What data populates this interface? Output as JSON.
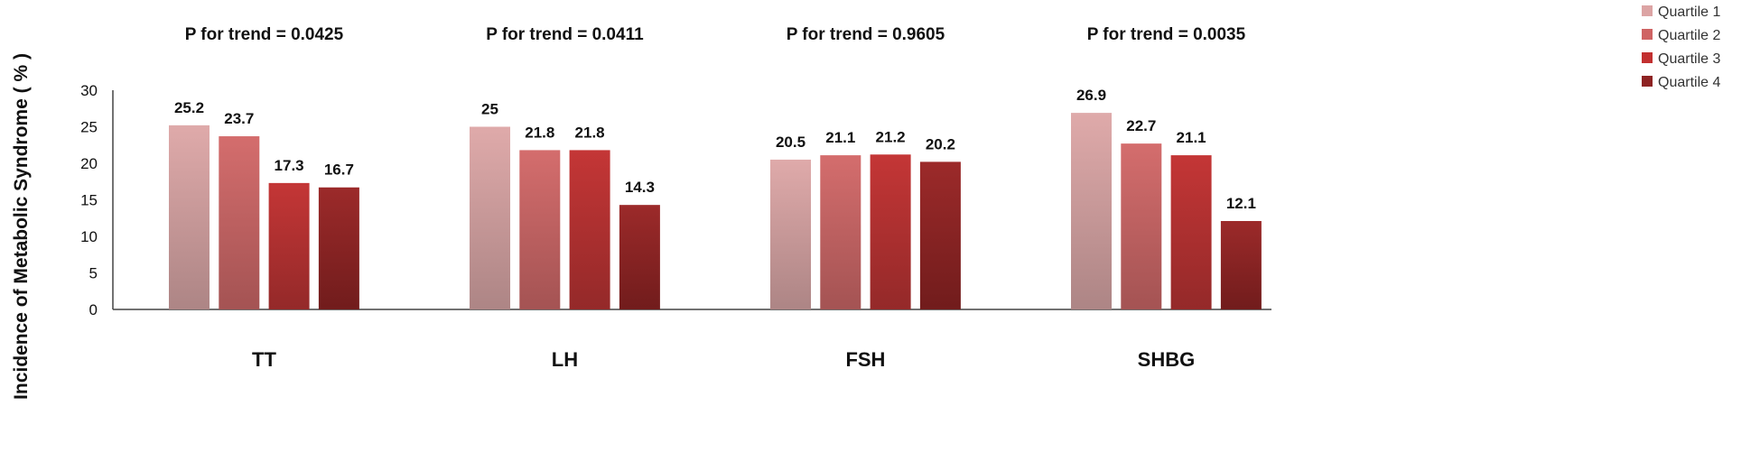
{
  "chart_data": {
    "type": "bar",
    "ylabel": "Incidence of Metabolic Syndrome ( % )",
    "xlabel": "",
    "ylim": [
      0,
      30
    ],
    "yticks": [
      0,
      5,
      10,
      15,
      20,
      25,
      30
    ],
    "grid": false,
    "legend_position": "top-right",
    "categories": [
      "TT",
      "LH",
      "FSH",
      "SHBG"
    ],
    "annotations": [
      "P for trend = 0.0425",
      "P for trend = 0.0411",
      "P for trend = 0.9605",
      "P for trend = 0.0035"
    ],
    "series": [
      {
        "name": "Quartile 1",
        "values": [
          25.2,
          25,
          20.5,
          26.9
        ],
        "color_top": "#dfaaaa",
        "color_bottom": "#ad8585",
        "legend_color": "#dca4a4"
      },
      {
        "name": "Quartile 2",
        "values": [
          23.7,
          21.8,
          21.1,
          22.7
        ],
        "color_top": "#d46d6d",
        "color_bottom": "#a45353",
        "legend_color": "#cf6363"
      },
      {
        "name": "Quartile 3",
        "values": [
          17.3,
          21.8,
          21.2,
          21.1
        ],
        "color_top": "#c43636",
        "color_bottom": "#942929",
        "legend_color": "#c23030"
      },
      {
        "name": "Quartile 4",
        "values": [
          16.7,
          14.3,
          20.2,
          12.1
        ],
        "color_top": "#9c2a2a",
        "color_bottom": "#711c1c",
        "legend_color": "#8e2323"
      }
    ]
  }
}
